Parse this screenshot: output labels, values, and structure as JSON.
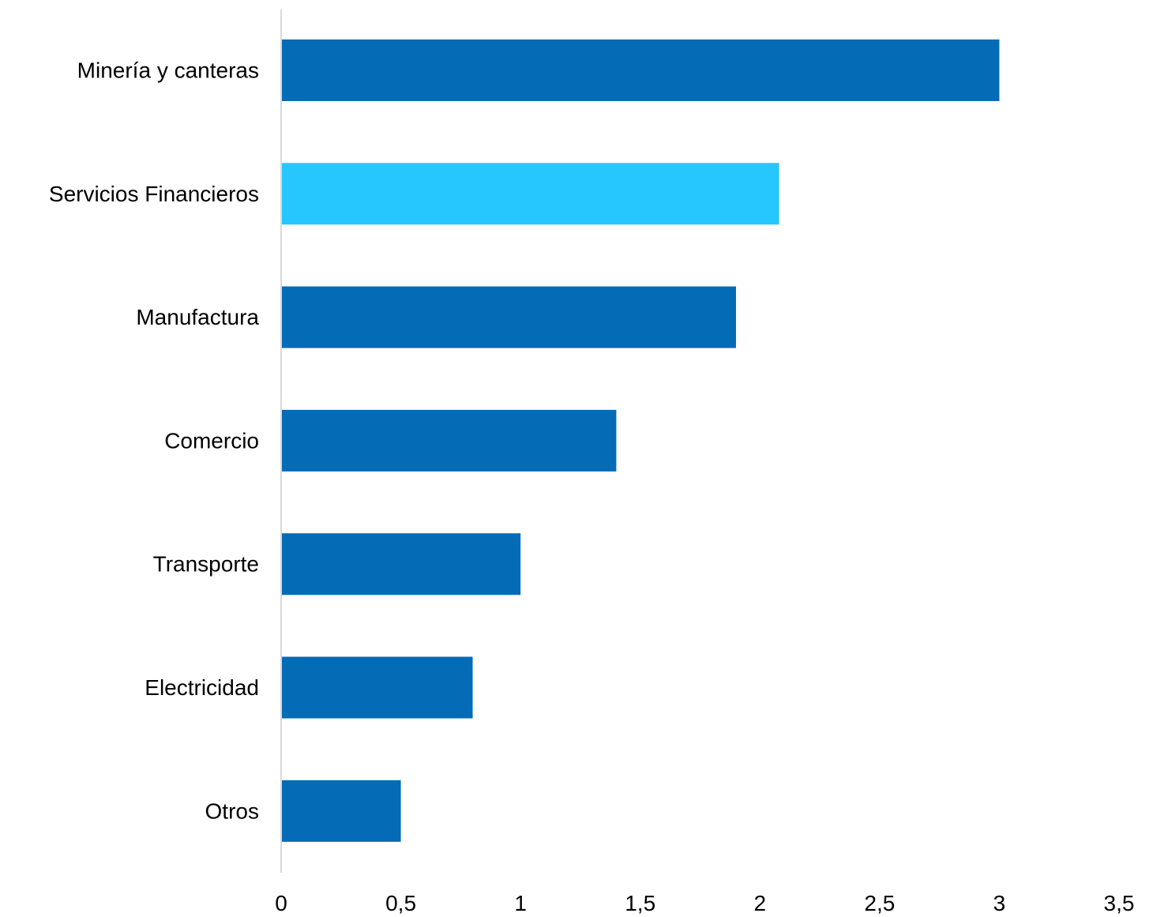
{
  "chart_data": {
    "type": "bar",
    "orientation": "horizontal",
    "title": "",
    "xlabel": "",
    "ylabel": "",
    "categories": [
      "Minería y canteras",
      "Servicios Financieros",
      "Manufactura",
      "Comercio",
      "Transporte",
      "Electricidad",
      "Otros"
    ],
    "values": [
      3.0,
      2.08,
      1.9,
      1.4,
      1.0,
      0.8,
      0.5
    ],
    "bar_colors": [
      "#046BB6",
      "#26C6FF",
      "#046BB6",
      "#046BB6",
      "#046BB6",
      "#046BB6",
      "#046BB6"
    ],
    "xlim": [
      0,
      3.5
    ],
    "xticks": [
      0,
      0.5,
      1,
      1.5,
      2,
      2.5,
      3,
      3.5
    ],
    "xtick_labels": [
      "0",
      "0,5",
      "1",
      "1,5",
      "2",
      "2,5",
      "3",
      "3,5"
    ],
    "grid": false,
    "legend": "none",
    "axis_color": "#D9D9D9"
  }
}
